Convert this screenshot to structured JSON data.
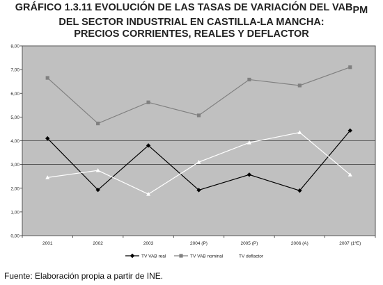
{
  "title": {
    "line1_main": "GRÁFICO 1.3.11 EVOLUCIÓN DE LAS TASAS DE VARIACIÓN DEL VAB",
    "line1_sub": "PM",
    "line2": "DEL SECTOR INDUSTRIAL EN CASTILLA-LA MANCHA:",
    "line3": "PRECIOS CORRIENTES, REALES  Y DEFLACTOR"
  },
  "source": "Fuente: Elaboración propia a partir de INE.",
  "colors": {
    "plot_bg": "#c0c0c0",
    "real": "#000000",
    "nominal": "#808080",
    "deflactor": "#ffffff"
  },
  "chart_data": {
    "type": "line",
    "categories": [
      "2001",
      "2002",
      "2003",
      "2004 (P)",
      "2005 (P)",
      "2006 (A)",
      "2007 (1ªE)"
    ],
    "series": [
      {
        "name": "TV VAB real",
        "values": [
          4.1,
          1.93,
          3.8,
          1.92,
          2.57,
          1.9,
          4.43
        ]
      },
      {
        "name": "TV VAB nominal",
        "values": [
          6.65,
          4.73,
          5.62,
          5.07,
          6.58,
          6.33,
          7.1
        ]
      },
      {
        "name": "TV deflactor",
        "values": [
          2.45,
          2.75,
          1.75,
          3.1,
          3.92,
          4.35,
          2.57
        ]
      }
    ],
    "yticks": [
      "0,00",
      "1,00",
      "2,00",
      "3,00",
      "4,00",
      "5,00",
      "6,00",
      "7,00",
      "8,00"
    ],
    "ylim": [
      0,
      8
    ],
    "gridlines": [
      3,
      4
    ],
    "legend": "bottom"
  }
}
